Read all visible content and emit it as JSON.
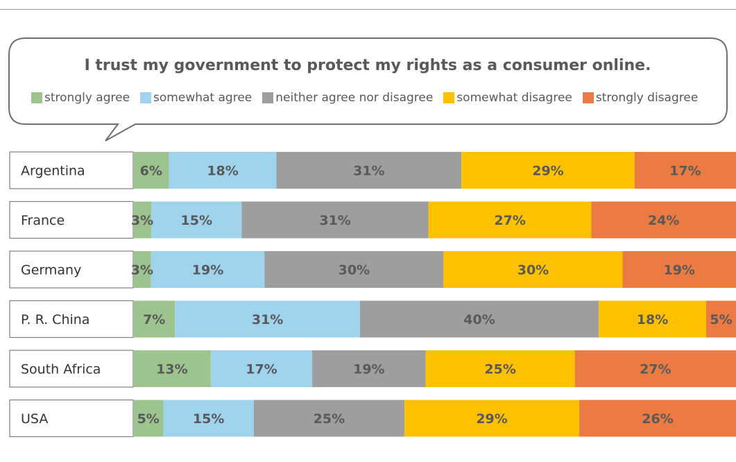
{
  "chart_data": {
    "type": "bar",
    "orientation": "horizontal",
    "stacked": true,
    "normalized": true,
    "title": "I trust my government to protect my rights as a consumer online.",
    "categories": [
      "Argentina",
      "France",
      "Germany",
      "P. R. China",
      "South Africa",
      "USA"
    ],
    "series": [
      {
        "name": "strongly agree",
        "color": "#9dc48f",
        "values": [
          6,
          3,
          3,
          7,
          13,
          5
        ]
      },
      {
        "name": "somewhat agree",
        "color": "#9fd4ec",
        "values": [
          18,
          15,
          19,
          31,
          17,
          15
        ]
      },
      {
        "name": "neither agree nor disagree",
        "color": "#9e9e9e",
        "values": [
          31,
          31,
          30,
          40,
          19,
          25
        ]
      },
      {
        "name": "somewhat disagree",
        "color": "#fec100",
        "values": [
          29,
          27,
          30,
          18,
          25,
          29
        ]
      },
      {
        "name": "strongly disagree",
        "color": "#eb7b43",
        "values": [
          17,
          24,
          19,
          5,
          27,
          26
        ]
      }
    ],
    "value_suffix": "%",
    "legend_position": "top",
    "grid": false
  }
}
